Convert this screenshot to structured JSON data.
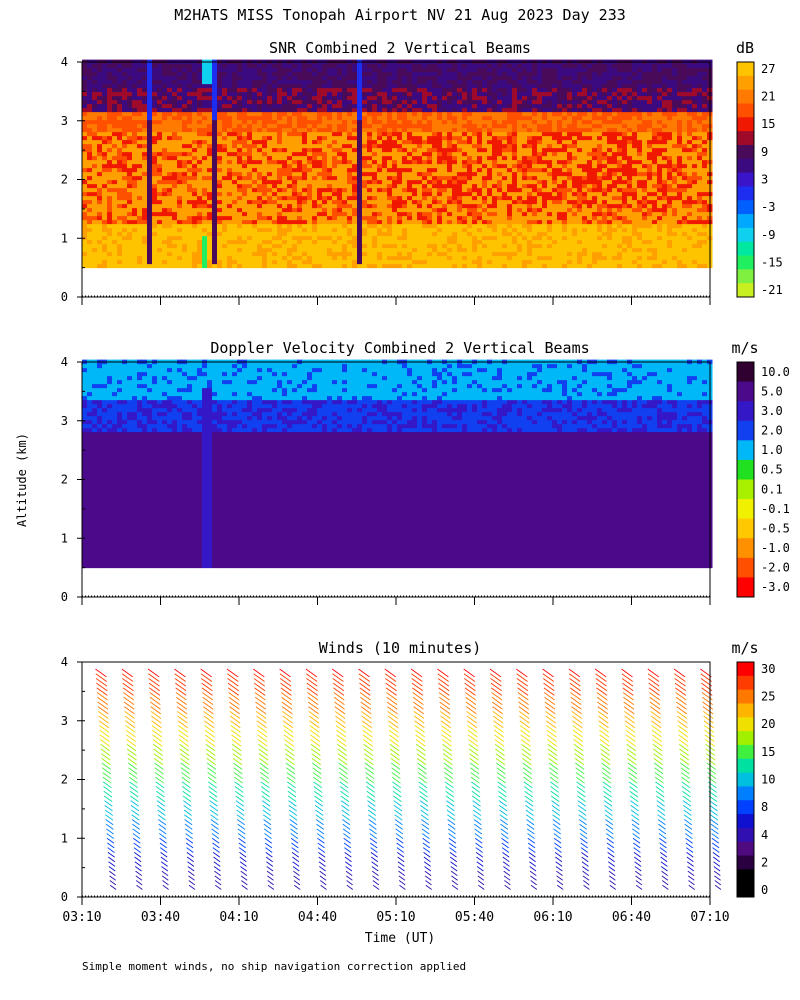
{
  "title": "M2HATS MISS Tonopah Airport NV  21 Aug 2023 Day 233",
  "ylabel": "Altitude (km)",
  "xlabel": "Time (UT)",
  "footnote": "Simple moment winds, no ship navigation correction applied",
  "chart_data": [
    {
      "type": "heatmap",
      "title": "SNR Combined 2 Vertical Beams",
      "unit": "dB",
      "ylim": [
        0,
        4
      ],
      "yticks": [
        "0",
        "1",
        "2",
        "3",
        "4"
      ],
      "xlim": [
        "03:10",
        "07:10"
      ],
      "color_levels": [
        {
          "label": "27",
          "color": "#ffc400"
        },
        {
          "label": "",
          "color": "#ffa000"
        },
        {
          "label": "21",
          "color": "#ff7a00"
        },
        {
          "label": "",
          "color": "#ff5000"
        },
        {
          "label": "15",
          "color": "#f01800"
        },
        {
          "label": "",
          "color": "#a00a2a"
        },
        {
          "label": "9",
          "color": "#4a0a5a"
        },
        {
          "label": "",
          "color": "#3c0a80"
        },
        {
          "label": "3",
          "color": "#3a14c8"
        },
        {
          "label": "",
          "color": "#1e2ef0"
        },
        {
          "label": "-3",
          "color": "#0060ff"
        },
        {
          "label": "",
          "color": "#00a8ff"
        },
        {
          "label": "-9",
          "color": "#10d0f0"
        },
        {
          "label": "",
          "color": "#00e8a0"
        },
        {
          "label": "-15",
          "color": "#20f060"
        },
        {
          "label": "",
          "color": "#80f040"
        },
        {
          "label": "-21",
          "color": "#c8f020"
        }
      ]
    },
    {
      "type": "heatmap",
      "title": "Doppler Velocity Combined 2 Vertical Beams",
      "unit": "m/s",
      "ylim": [
        0,
        4
      ],
      "yticks": [
        "0",
        "1",
        "2",
        "3",
        "4"
      ],
      "xlim": [
        "03:10",
        "07:10"
      ],
      "color_levels": [
        {
          "label": "10.0",
          "color": "#300030"
        },
        {
          "label": "5.0",
          "color": "#4a0a8a"
        },
        {
          "label": "3.0",
          "color": "#3418c8"
        },
        {
          "label": "2.0",
          "color": "#1040f0"
        },
        {
          "label": "1.0",
          "color": "#00b8f8"
        },
        {
          "label": "0.5",
          "color": "#20e020"
        },
        {
          "label": "0.1",
          "color": "#a8f000"
        },
        {
          "label": "-0.1",
          "color": "#f0f000"
        },
        {
          "label": "-0.5",
          "color": "#ffc800"
        },
        {
          "label": "-1.0",
          "color": "#ff9000"
        },
        {
          "label": "-2.0",
          "color": "#ff5000"
        },
        {
          "label": "-3.0",
          "color": "#ff0000"
        }
      ]
    },
    {
      "type": "scatter",
      "title": "Winds (10 minutes)",
      "unit": "m/s",
      "ylim": [
        0,
        4
      ],
      "yticks": [
        "0",
        "1",
        "2",
        "3",
        "4"
      ],
      "xticks": [
        "03:10",
        "03:40",
        "04:10",
        "04:40",
        "05:10",
        "05:40",
        "06:10",
        "06:40",
        "07:10"
      ],
      "profile_count": 24,
      "color_levels": [
        {
          "label": "30",
          "color": "#ff0000"
        },
        {
          "label": "",
          "color": "#ff3c00"
        },
        {
          "label": "25",
          "color": "#ff7800"
        },
        {
          "label": "",
          "color": "#ffb400"
        },
        {
          "label": "20",
          "color": "#f0e000"
        },
        {
          "label": "",
          "color": "#a0f000"
        },
        {
          "label": "15",
          "color": "#40f040"
        },
        {
          "label": "",
          "color": "#00e0a0"
        },
        {
          "label": "10",
          "color": "#00c0e0"
        },
        {
          "label": "",
          "color": "#0080ff"
        },
        {
          "label": "8",
          "color": "#0040ff"
        },
        {
          "label": "",
          "color": "#1010d0"
        },
        {
          "label": "4",
          "color": "#3010b0"
        },
        {
          "label": "",
          "color": "#500a80"
        },
        {
          "label": "2",
          "color": "#2a0040"
        },
        {
          "label": "",
          "color": "#000000"
        },
        {
          "label": "0",
          "color": "#000000"
        }
      ]
    }
  ]
}
